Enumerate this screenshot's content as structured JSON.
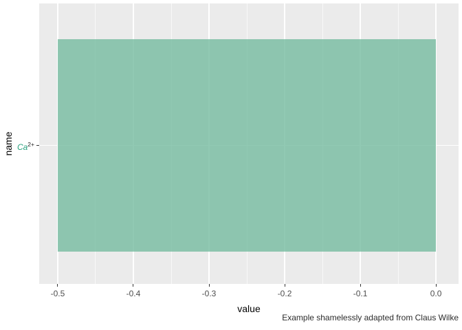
{
  "figure": {
    "background_color": "#FFFFFF",
    "panel_color": "#EBEBEB",
    "grid_color": "#FFFFFF",
    "tick_color": "#333333",
    "tick_label_color": "#4D4D4D"
  },
  "chart_data": {
    "type": "bar",
    "orientation": "horizontal",
    "title": "",
    "xlabel": "value",
    "ylabel": "name",
    "caption": "Example shamelessly adapted from Claus Wilke",
    "categories": [
      {
        "label": "Ca2+",
        "base": "Ca",
        "superscript": "2+",
        "label_color": "#2AA17E",
        "italic": true
      }
    ],
    "series": [
      {
        "name": "value",
        "values": [
          -0.5
        ]
      }
    ],
    "bar_fill": "rgba(118,187,160,0.8)",
    "bar_baseline": 0,
    "x_ticks": [
      -0.5,
      -0.4,
      -0.3,
      -0.2,
      -0.1,
      0.0
    ],
    "x_tick_labels": [
      "-0.5",
      "-0.4",
      "-0.3",
      "-0.2",
      "-0.1",
      "0.0"
    ],
    "xlim": [
      -0.5245,
      0.0299
    ],
    "grid": {
      "major": true,
      "minor": true
    },
    "legend": "none"
  }
}
